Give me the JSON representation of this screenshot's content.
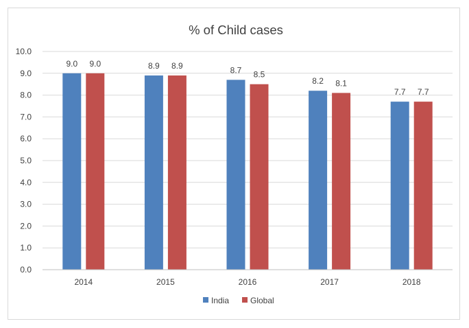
{
  "chart_data": {
    "type": "bar",
    "title": "% of Child cases",
    "xlabel": "",
    "ylabel": "",
    "categories": [
      "2014",
      "2015",
      "2016",
      "2017",
      "2018"
    ],
    "series": [
      {
        "name": "India",
        "color": "#4f81bd",
        "values": [
          9.0,
          8.9,
          8.7,
          8.2,
          7.7
        ],
        "labels": [
          "9.0",
          "8.9",
          "8.7",
          "8.2",
          "7.7"
        ]
      },
      {
        "name": "Global",
        "color": "#c0504d",
        "values": [
          9.0,
          8.9,
          8.5,
          8.1,
          7.7
        ],
        "labels": [
          "9.0",
          "8.9",
          "8.5",
          "8.1",
          "7.7"
        ]
      }
    ],
    "ylim": [
      0,
      10
    ],
    "ytick_labels": [
      "0.0",
      "1.0",
      "2.0",
      "3.0",
      "4.0",
      "5.0",
      "6.0",
      "7.0",
      "8.0",
      "9.0",
      "10.0"
    ],
    "grid": true,
    "legend_position": "bottom"
  }
}
